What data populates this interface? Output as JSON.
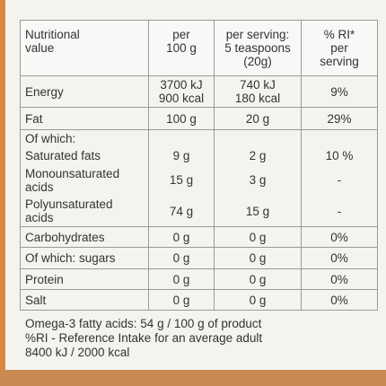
{
  "table": {
    "header": [
      "Nutritional\nvalue",
      "per\n100 g",
      "per serving:\n5 teaspoons\n(20g)",
      "% RI*\nper\nserving"
    ],
    "sections": [
      [
        [
          "Energy",
          "3700 kJ\n900 kcal",
          "740 kJ\n180 kcal",
          "9%"
        ]
      ],
      [
        [
          "Fat",
          "100 g",
          "20 g",
          "29%"
        ]
      ],
      [
        [
          "Of which:"
        ],
        [
          "Saturated fats",
          "9 g",
          "2 g",
          "10 %"
        ],
        [
          "Monounsaturated\nacids",
          "15 g",
          "3 g",
          "-"
        ],
        [
          "Polyunsaturated\nacids",
          "74 g",
          "15 g",
          "-"
        ]
      ],
      [
        [
          "Carbohydrates",
          "0 g",
          "0 g",
          "0%"
        ]
      ],
      [
        [
          "Of which: sugars",
          "0 g",
          "0 g",
          "0%"
        ]
      ],
      [
        [
          "Protein",
          "0 g",
          "0 g",
          "0%"
        ]
      ],
      [
        [
          "Salt",
          "0 g",
          "0 g",
          "0%"
        ]
      ]
    ]
  },
  "footer": [
    "Omega-3 fatty acids: 54 g / 100 g of product",
    "%RI - Reference Intake for an average adult",
    "8400 kJ / 2000 kcal"
  ]
}
